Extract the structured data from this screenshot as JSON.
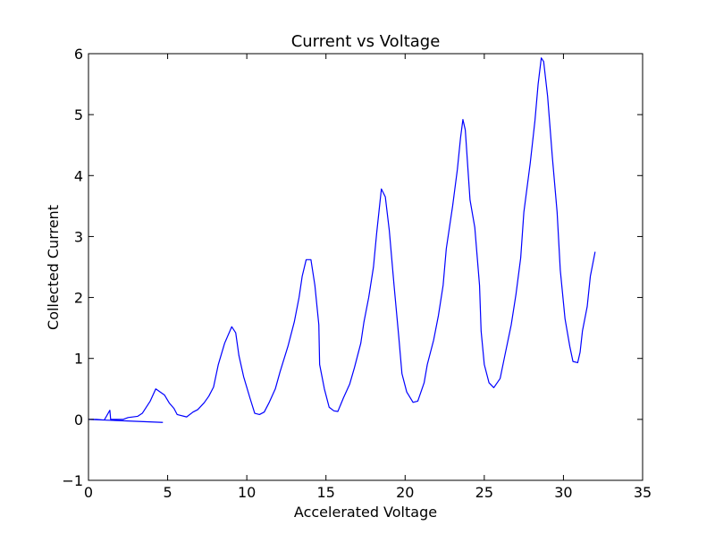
{
  "chart_data": {
    "type": "line",
    "title": "Current vs Voltage",
    "x_label": "Accelerated Voltage",
    "y_label": "Collected Current",
    "color": "#0000ff",
    "xlim": [
      0,
      35
    ],
    "xticks": [
      0,
      5,
      10,
      15,
      20,
      25,
      30,
      35
    ],
    "ylim": [
      -1,
      6
    ],
    "yticks": [
      {
        "value": -1,
        "label": "−1"
      },
      0,
      1,
      2,
      3,
      4,
      5,
      6
    ],
    "x": [
      4.7,
      0,
      0.5,
      1.0,
      1.35,
      1.4,
      2.2,
      2.5,
      3.1,
      3.4,
      3.9,
      4.25,
      4.8,
      5.1,
      5.4,
      5.6,
      6.2,
      6.6,
      6.9,
      7.3,
      7.6,
      7.9,
      8.2,
      8.6,
      9.05,
      9.3,
      9.5,
      9.8,
      10.2,
      10.5,
      10.8,
      11.1,
      11.4,
      11.8,
      12.1,
      12.6,
      13.0,
      13.3,
      13.5,
      13.75,
      14.05,
      14.3,
      14.55,
      14.6,
      14.9,
      15.2,
      15.5,
      15.75,
      16.1,
      16.5,
      16.8,
      17.2,
      17.4,
      17.7,
      18.0,
      18.2,
      18.5,
      18.75,
      19.0,
      19.3,
      19.6,
      19.8,
      20.1,
      20.5,
      20.8,
      21.2,
      21.4,
      21.8,
      22.1,
      22.4,
      22.6,
      23.0,
      23.3,
      23.5,
      23.65,
      23.8,
      24.1,
      24.4,
      24.7,
      24.8,
      25.0,
      25.3,
      25.6,
      26.0,
      26.3,
      26.7,
      27.0,
      27.3,
      27.5,
      27.9,
      28.2,
      28.4,
      28.6,
      28.75,
      29.0,
      29.3,
      29.6,
      29.8,
      30.1,
      30.4,
      30.6,
      30.9,
      31.05,
      31.2,
      31.5,
      31.7,
      32.0
    ],
    "values": [
      -0.05,
      0,
      0,
      -0.01,
      0.15,
      0.0,
      0.0,
      0.03,
      0.05,
      0.1,
      0.3,
      0.5,
      0.4,
      0.27,
      0.18,
      0.08,
      0.04,
      0.12,
      0.16,
      0.27,
      0.38,
      0.53,
      0.9,
      1.25,
      1.52,
      1.42,
      1.05,
      0.7,
      0.35,
      0.1,
      0.08,
      0.12,
      0.27,
      0.5,
      0.78,
      1.2,
      1.6,
      2.0,
      2.35,
      2.62,
      2.62,
      2.2,
      1.55,
      0.9,
      0.5,
      0.2,
      0.14,
      0.13,
      0.35,
      0.58,
      0.85,
      1.25,
      1.6,
      2.0,
      2.5,
      3.05,
      3.78,
      3.65,
      3.1,
      2.2,
      1.35,
      0.75,
      0.45,
      0.28,
      0.3,
      0.6,
      0.9,
      1.3,
      1.7,
      2.2,
      2.8,
      3.5,
      4.1,
      4.62,
      4.92,
      4.75,
      3.6,
      3.15,
      2.2,
      1.45,
      0.9,
      0.6,
      0.52,
      0.67,
      1.05,
      1.55,
      2.05,
      2.65,
      3.4,
      4.2,
      4.9,
      5.5,
      5.93,
      5.87,
      5.3,
      4.3,
      3.4,
      2.45,
      1.65,
      1.2,
      0.95,
      0.93,
      1.1,
      1.45,
      1.85,
      2.35,
      2.75
    ]
  }
}
